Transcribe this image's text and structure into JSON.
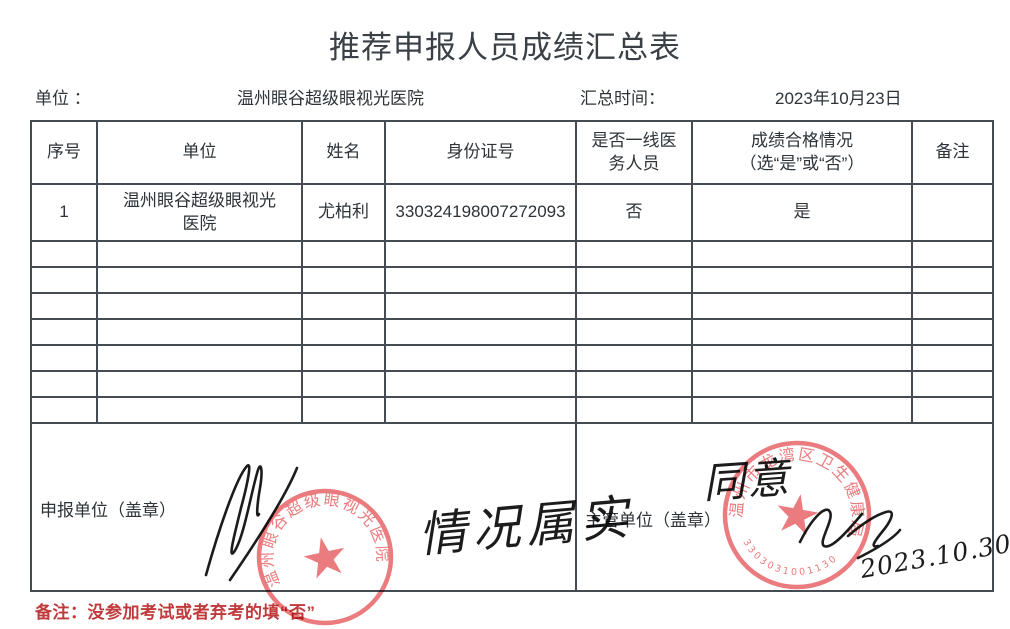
{
  "title": "推荐申报人员成绩汇总表",
  "meta": {
    "unit_label": "单位 ：",
    "unit_value": "温州眼谷超级眼视光医院",
    "time_label": "汇总时间：",
    "time_value": "2023年10月23日"
  },
  "table": {
    "columns": [
      "序号",
      "单位",
      "姓名",
      "身份证号",
      "是否一线医务人员",
      "成绩合格情况",
      "备注"
    ],
    "qualify_sub": "（选“是”或“否”）",
    "empty_row_count": 7,
    "rows": [
      {
        "no": "1",
        "unit": "温州眼谷超级眼视光医院",
        "name": "尤柏利",
        "id_number": "330324198007272093",
        "frontline": "否",
        "qualified": "是",
        "remark": ""
      }
    ]
  },
  "footer": {
    "declare_label": "申报单位（盖章）",
    "supervise_label": "主管单位（盖章）",
    "handwriting": {
      "declare_note": "情况属实",
      "approve_note": "同意",
      "approve_date": "2023.10.30"
    }
  },
  "stamps": {
    "left": {
      "ring_text": "温州眼谷超级眼视光医院",
      "star": "★"
    },
    "right": {
      "ring_text": "温州市龙湾区卫生健康局",
      "serial": "3303031001130",
      "star": "★"
    }
  },
  "bottom_note": "备注：没参加考试或者弃考的填“否”",
  "colors": {
    "stamp_red": "#e8696c",
    "note_red": "#c03a3c",
    "border": "#454b52",
    "text": "#2d3338"
  }
}
